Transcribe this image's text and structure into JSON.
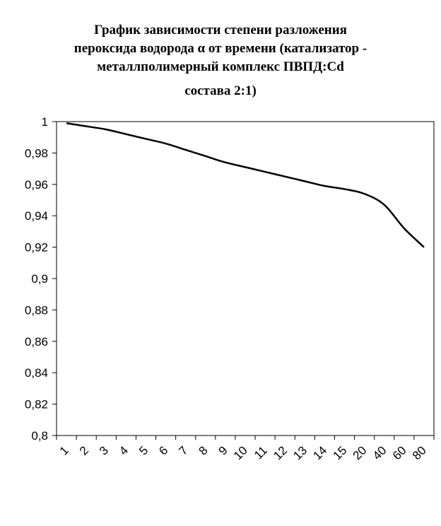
{
  "title": {
    "lines": [
      "График зависимости степени разложения",
      "пероксида водорода α от времени (катализатор -",
      "металлполимерный комплекс ПВПД:Cd",
      "состава 2:1)"
    ]
  },
  "colors": {
    "line": "#000000",
    "axis": "#000000",
    "plot_background": "#ffffff"
  },
  "chart_data": {
    "type": "line",
    "title": "График зависимости степени разложения пероксида водорода α от времени (катализатор - металлполимерный комплекс ПВПД:Cd состава 2:1)",
    "xlabel": "",
    "ylabel": "",
    "categories": [
      "1",
      "2",
      "3",
      "4",
      "5",
      "6",
      "7",
      "8",
      "9",
      "10",
      "11",
      "12",
      "13",
      "14",
      "15",
      "20",
      "40",
      "60",
      "80"
    ],
    "values": [
      0.999,
      0.997,
      0.995,
      0.992,
      0.989,
      0.986,
      0.982,
      0.978,
      0.974,
      0.971,
      0.968,
      0.965,
      0.962,
      0.959,
      0.957,
      0.954,
      0.947,
      0.932,
      0.92
    ],
    "ylim": [
      0.8,
      1.0
    ],
    "yticks": [
      1,
      0.98,
      0.96,
      0.94,
      0.92,
      0.9,
      0.88,
      0.86,
      0.84,
      0.82,
      0.8
    ],
    "ytick_labels": [
      "1",
      "0,98",
      "0,96",
      "0,94",
      "0,92",
      "0,9",
      "0,88",
      "0,86",
      "0,84",
      "0,82",
      "0,8"
    ],
    "grid": false,
    "legend": "none"
  }
}
